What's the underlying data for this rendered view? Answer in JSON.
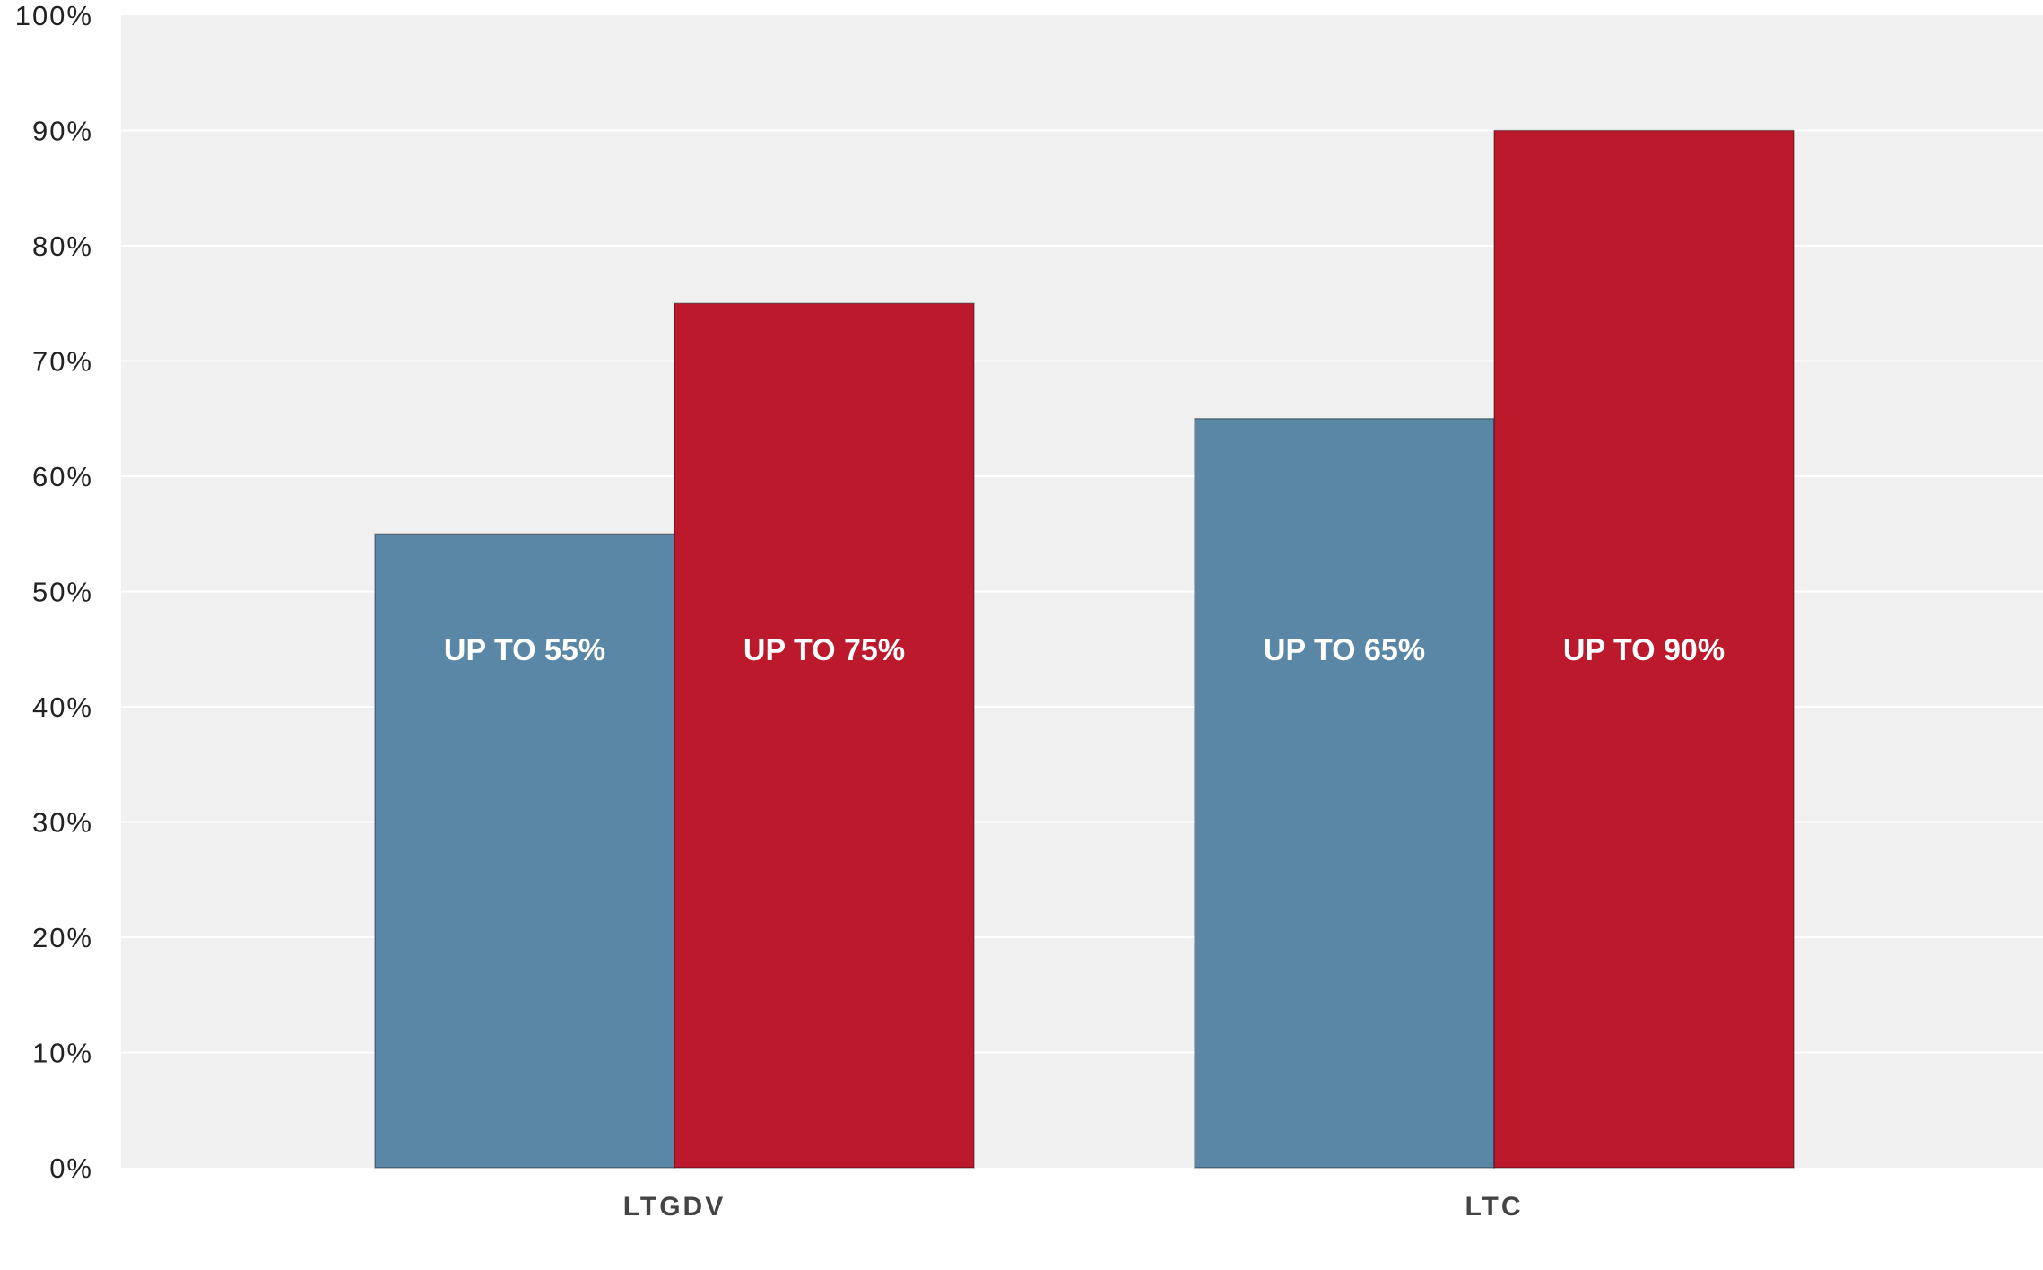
{
  "chart_data": {
    "type": "bar",
    "title": "",
    "xlabel": "",
    "ylabel": "",
    "categories": [
      "LTGDV",
      "LTC"
    ],
    "series": [
      {
        "values": [
          55,
          65
        ],
        "labels": [
          "UP TO 55%",
          "UP TO 65%"
        ],
        "color": "#5b87a6"
      },
      {
        "values": [
          75,
          90
        ],
        "labels": [
          "UP TO 75%",
          "UP TO 90%"
        ],
        "color": "#bc1a2c"
      }
    ],
    "ylim": [
      0,
      100
    ],
    "yticks": [
      0,
      10,
      20,
      30,
      40,
      50,
      60,
      70,
      80,
      90,
      100
    ],
    "ytick_labels": [
      "0%",
      "10%",
      "20%",
      "30%",
      "40%",
      "50%",
      "60%",
      "70%",
      "80%",
      "90%",
      "100%"
    ],
    "grid": true,
    "legend": "none",
    "plot_background": "#f0f0f0",
    "grid_color": "#ffffff"
  }
}
